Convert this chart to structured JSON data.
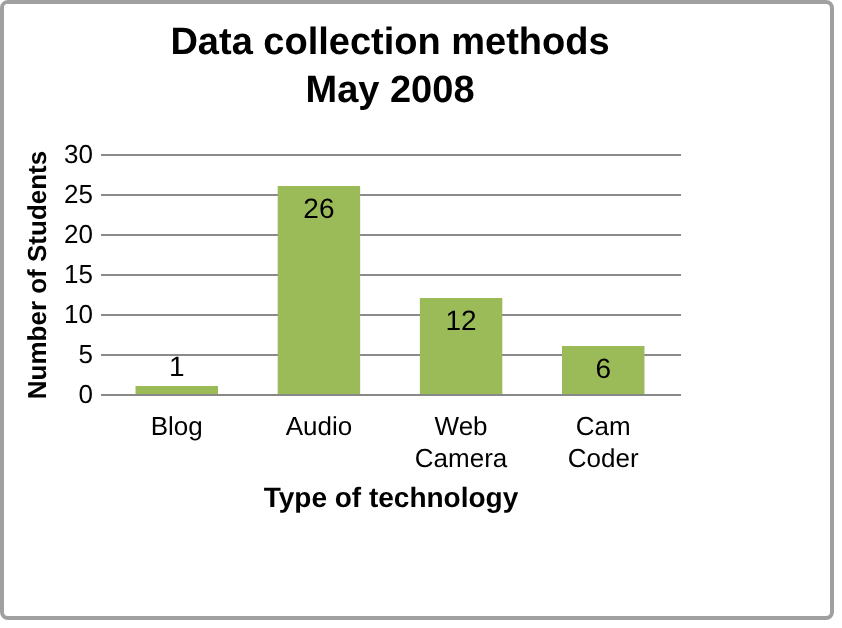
{
  "chart_data": {
    "type": "bar",
    "title": "Data collection methods\nMay 2008",
    "xlabel": "Type of technology",
    "ylabel": "Number of Students",
    "categories": [
      "Blog",
      "Audio",
      "Web Camera",
      "Cam Coder"
    ],
    "values": [
      1,
      26,
      12,
      6
    ],
    "color": "#9bbb59",
    "ylim": [
      0,
      30
    ],
    "yticks": [
      0,
      5,
      10,
      15,
      20,
      25,
      30
    ],
    "grid": "y",
    "data_labels": true
  }
}
